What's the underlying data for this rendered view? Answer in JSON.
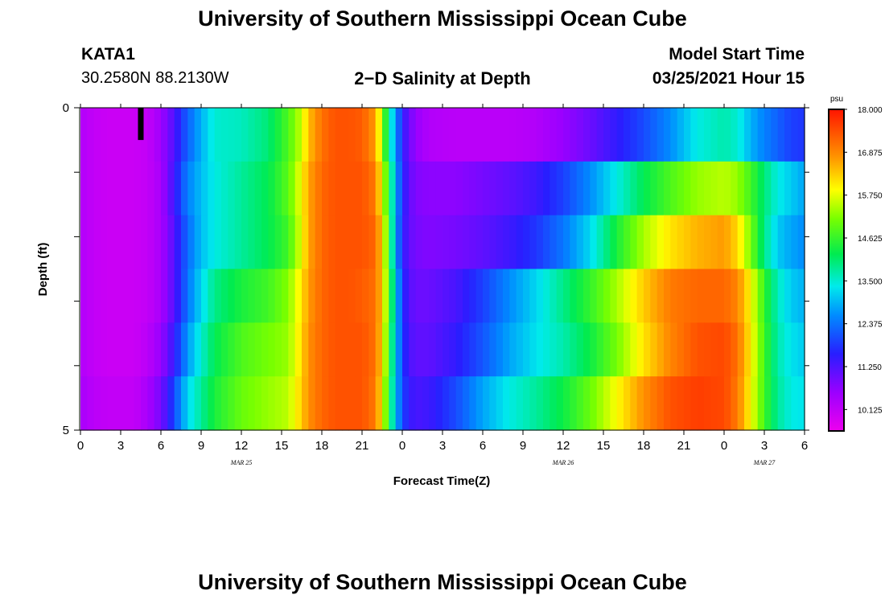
{
  "header": {
    "title": "University of Southern Mississippi Ocean Cube",
    "station": "KATA1",
    "coords": "30.2580N 88.2130W",
    "subtitle": "2−D Salinity at Depth",
    "model_start_label": "Model Start Time",
    "model_start_value": "03/25/2021 Hour 15"
  },
  "footer": {
    "title": "University of Southern Mississippi Ocean Cube"
  },
  "chart_data": {
    "type": "heatmap",
    "title": "2−D Salinity at Depth",
    "xlabel": "Forecast Time(Z)",
    "ylabel": "Depth (ft)",
    "y_range": [
      0,
      5
    ],
    "y_tick_labels": [
      "0",
      "5"
    ],
    "x_tick_labels": [
      "0",
      "3",
      "6",
      "9",
      "12",
      "15",
      "18",
      "21",
      "0",
      "3",
      "6",
      "9",
      "12",
      "15",
      "18",
      "21",
      "0",
      "3",
      "6"
    ],
    "x_range_hours": [
      0,
      54
    ],
    "date_labels": [
      {
        "label": "MAR 25",
        "hour": 12
      },
      {
        "label": "MAR 26",
        "hour": 36
      },
      {
        "label": "MAR 27",
        "hour": 51
      }
    ],
    "colorbar": {
      "unit": "psu",
      "min": 9.5625,
      "max": 18.0,
      "tick_labels": [
        "18.000",
        "16.875",
        "15.750",
        "14.625",
        "13.500",
        "12.375",
        "11.250",
        "10.125"
      ],
      "tick_values": [
        18.0,
        16.875,
        15.75,
        14.625,
        13.5,
        12.375,
        11.25,
        10.125
      ]
    },
    "missing_marker": {
      "hour": 4.5,
      "depth_range": [
        0,
        0.5
      ]
    },
    "depths": [
      0,
      1,
      2,
      3,
      4,
      5
    ],
    "hours": [
      0,
      1,
      2,
      3,
      4,
      5,
      6,
      6.5,
      7,
      7.5,
      8,
      9,
      10,
      12,
      14,
      15.5,
      16.5,
      17,
      18,
      19,
      20,
      21,
      22,
      22.5,
      23,
      23.5,
      24,
      24.5,
      25,
      26,
      28,
      30,
      32,
      34,
      36,
      38,
      40,
      42,
      44,
      46,
      48,
      49,
      50,
      51,
      52,
      53,
      54
    ],
    "salinity": [
      [
        10.3,
        10.1,
        10.0,
        10.0,
        10.0,
        10.1,
        10.5,
        10.9,
        11.2,
        11.8,
        12.2,
        12.9,
        13.5,
        13.6,
        14.0,
        14.8,
        15.6,
        16.4,
        17.1,
        17.4,
        17.4,
        17.3,
        16.7,
        15.3,
        13.8,
        12.7,
        11.6,
        11.0,
        10.6,
        10.3,
        10.2,
        10.2,
        10.2,
        10.3,
        10.6,
        11.0,
        11.5,
        12.0,
        12.6,
        13.4,
        13.7,
        13.5,
        12.9,
        12.5,
        12.2,
        11.9,
        11.8
      ],
      [
        10.3,
        10.1,
        10.0,
        10.0,
        10.0,
        10.1,
        10.4,
        10.9,
        11.4,
        12.0,
        12.5,
        13.0,
        13.4,
        13.8,
        14.2,
        14.9,
        15.9,
        16.6,
        17.2,
        17.4,
        17.4,
        17.4,
        17.0,
        15.8,
        14.4,
        12.9,
        11.7,
        11.1,
        10.8,
        10.7,
        10.7,
        10.9,
        11.1,
        11.4,
        11.9,
        12.6,
        13.4,
        14.2,
        14.8,
        15.3,
        15.5,
        15.3,
        14.7,
        14.0,
        13.4,
        13.1,
        12.8
      ],
      [
        10.3,
        10.1,
        10.0,
        10.0,
        10.0,
        10.1,
        10.4,
        10.8,
        11.2,
        11.8,
        12.3,
        13.0,
        13.4,
        13.8,
        14.2,
        14.7,
        15.8,
        16.6,
        17.2,
        17.4,
        17.4,
        17.4,
        17.2,
        16.2,
        14.6,
        12.8,
        11.6,
        11.1,
        10.9,
        10.8,
        10.9,
        11.1,
        11.4,
        11.8,
        12.4,
        13.2,
        14.4,
        15.4,
        16.1,
        16.5,
        16.7,
        16.2,
        15.1,
        13.9,
        13.1,
        12.8,
        12.6
      ],
      [
        10.3,
        10.1,
        10.0,
        10.0,
        10.0,
        10.1,
        10.4,
        10.8,
        11.2,
        11.8,
        12.4,
        13.2,
        13.9,
        14.4,
        14.7,
        15.2,
        16.1,
        16.7,
        17.2,
        17.4,
        17.4,
        17.3,
        17.1,
        16.3,
        14.8,
        13.2,
        11.8,
        11.2,
        11.0,
        11.0,
        11.3,
        11.9,
        12.6,
        13.2,
        13.9,
        14.6,
        15.4,
        16.3,
        17.0,
        17.2,
        17.2,
        16.9,
        15.9,
        14.6,
        13.6,
        13.1,
        12.9
      ],
      [
        10.3,
        10.1,
        10.0,
        10.0,
        10.0,
        10.2,
        10.6,
        11.0,
        11.5,
        12.1,
        12.7,
        13.5,
        14.2,
        14.8,
        15.1,
        15.3,
        16.2,
        16.8,
        17.2,
        17.4,
        17.4,
        17.4,
        17.1,
        16.2,
        14.6,
        13.1,
        11.9,
        11.3,
        11.1,
        11.1,
        11.5,
        12.1,
        12.8,
        13.3,
        13.7,
        14.3,
        15.1,
        16.1,
        16.9,
        17.4,
        17.5,
        17.1,
        16.0,
        14.7,
        13.7,
        13.3,
        13.1
      ],
      [
        10.4,
        10.2,
        10.1,
        10.1,
        10.1,
        10.4,
        10.9,
        11.4,
        12.0,
        12.6,
        13.2,
        13.8,
        14.4,
        15.0,
        15.3,
        15.5,
        16.3,
        16.8,
        17.2,
        17.4,
        17.4,
        17.4,
        17.0,
        16.0,
        14.4,
        13.0,
        12.0,
        11.5,
        11.3,
        11.4,
        12.0,
        12.8,
        13.4,
        13.8,
        14.3,
        15.0,
        15.9,
        16.8,
        17.4,
        17.6,
        17.5,
        17.0,
        15.9,
        14.7,
        13.8,
        13.4,
        13.3
      ]
    ]
  }
}
